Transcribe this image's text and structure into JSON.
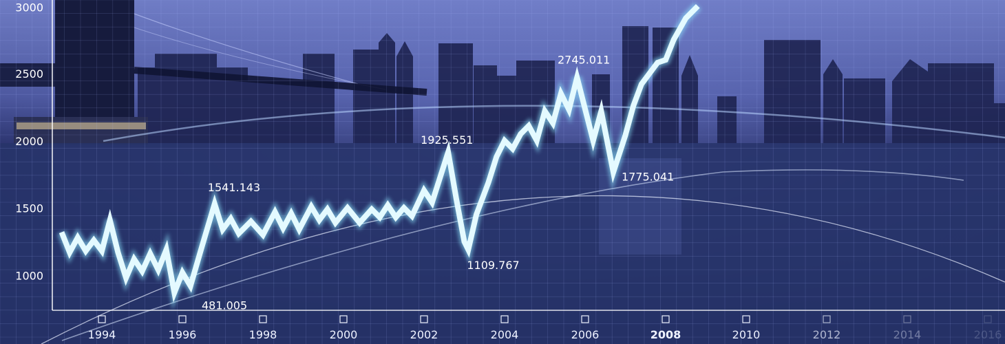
{
  "chart_data": {
    "type": "line",
    "title": "",
    "xlabel": "",
    "ylabel": "",
    "ylim": [
      800,
      3000
    ],
    "y_ticks": [
      1000,
      1500,
      2000,
      2500,
      3000
    ],
    "x_ticks": [
      1994,
      1996,
      1998,
      2000,
      2002,
      2004,
      2006,
      2008,
      2010,
      2012,
      2014,
      2016
    ],
    "x_tick_labels": [
      "1994",
      "1996",
      "1998",
      "2000",
      "2002",
      "2004",
      "2006",
      "2008",
      "2010",
      "2012",
      "2014",
      "2016"
    ],
    "grid": true,
    "series": [
      {
        "values": [
          [
            1993.0,
            1330
          ],
          [
            1993.2,
            1180
          ],
          [
            1993.4,
            1290
          ],
          [
            1993.6,
            1190
          ],
          [
            1993.8,
            1270
          ],
          [
            1994.0,
            1190
          ],
          [
            1994.2,
            1420
          ],
          [
            1994.4,
            1180
          ],
          [
            1994.6,
            990
          ],
          [
            1994.8,
            1130
          ],
          [
            1995.0,
            1040
          ],
          [
            1995.2,
            1170
          ],
          [
            1995.4,
            1050
          ],
          [
            1995.6,
            1200
          ],
          [
            1995.8,
            880
          ],
          [
            1996.0,
            1030
          ],
          [
            1996.2,
            930
          ],
          [
            1996.5,
            1240
          ],
          [
            1996.8,
            1541.143
          ],
          [
            1997.0,
            1350
          ],
          [
            1997.2,
            1430
          ],
          [
            1997.4,
            1320
          ],
          [
            1997.7,
            1410
          ],
          [
            1998.0,
            1310
          ],
          [
            1998.3,
            1480
          ],
          [
            1998.5,
            1360
          ],
          [
            1998.7,
            1470
          ],
          [
            1998.9,
            1350
          ],
          [
            1999.2,
            1520
          ],
          [
            1999.4,
            1420
          ],
          [
            1999.6,
            1500
          ],
          [
            1999.8,
            1400
          ],
          [
            2000.1,
            1510
          ],
          [
            2000.4,
            1400
          ],
          [
            2000.7,
            1500
          ],
          [
            2000.9,
            1440
          ],
          [
            2001.1,
            1530
          ],
          [
            2001.3,
            1440
          ],
          [
            2001.5,
            1510
          ],
          [
            2001.7,
            1450
          ],
          [
            2002.0,
            1640
          ],
          [
            2002.2,
            1550
          ],
          [
            2002.6,
            1925.551
          ],
          [
            2002.8,
            1580
          ],
          [
            2003.0,
            1260
          ],
          [
            2003.1,
            1200
          ],
          [
            2003.3,
            1460
          ],
          [
            2003.6,
            1700
          ],
          [
            2003.8,
            1890
          ],
          [
            2004.0,
            2010
          ],
          [
            2004.2,
            1950
          ],
          [
            2004.4,
            2060
          ],
          [
            2004.6,
            2120
          ],
          [
            2004.8,
            2010
          ],
          [
            2005.0,
            2230
          ],
          [
            2005.2,
            2140
          ],
          [
            2005.4,
            2360
          ],
          [
            2005.6,
            2240
          ],
          [
            2005.8,
            2480
          ],
          [
            2006.0,
            2245
          ],
          [
            2006.2,
            2010
          ],
          [
            2006.4,
            2230
          ],
          [
            2006.7,
            1775.041
          ],
          [
            2007.0,
            2050
          ],
          [
            2007.2,
            2270
          ],
          [
            2007.4,
            2430
          ],
          [
            2007.6,
            2510
          ],
          [
            2007.8,
            2590
          ],
          [
            2008.0,
            2610
          ],
          [
            2008.2,
            2760
          ],
          [
            2008.5,
            2920
          ],
          [
            2008.8,
            3010
          ]
        ]
      }
    ],
    "annotations": [
      {
        "text": "481.005",
        "x": 1996.0,
        "y": 880
      },
      {
        "text": "1541.143",
        "x": 1996.8,
        "y": 1541.143
      },
      {
        "text": "1109.767",
        "x": 2003.1,
        "y": 1200
      },
      {
        "text": "1925.551",
        "x": 2002.6,
        "y": 1925.551
      },
      {
        "text": "2745.011",
        "x": 2006.0,
        "y": 2480
      },
      {
        "text": "1775.041",
        "x": 2006.7,
        "y": 1775.041
      }
    ],
    "colors": {
      "line": "#e4faff",
      "line_glow": "#8fe8ff",
      "axis": "#ffffff",
      "grid": "#a9b7ff"
    }
  }
}
